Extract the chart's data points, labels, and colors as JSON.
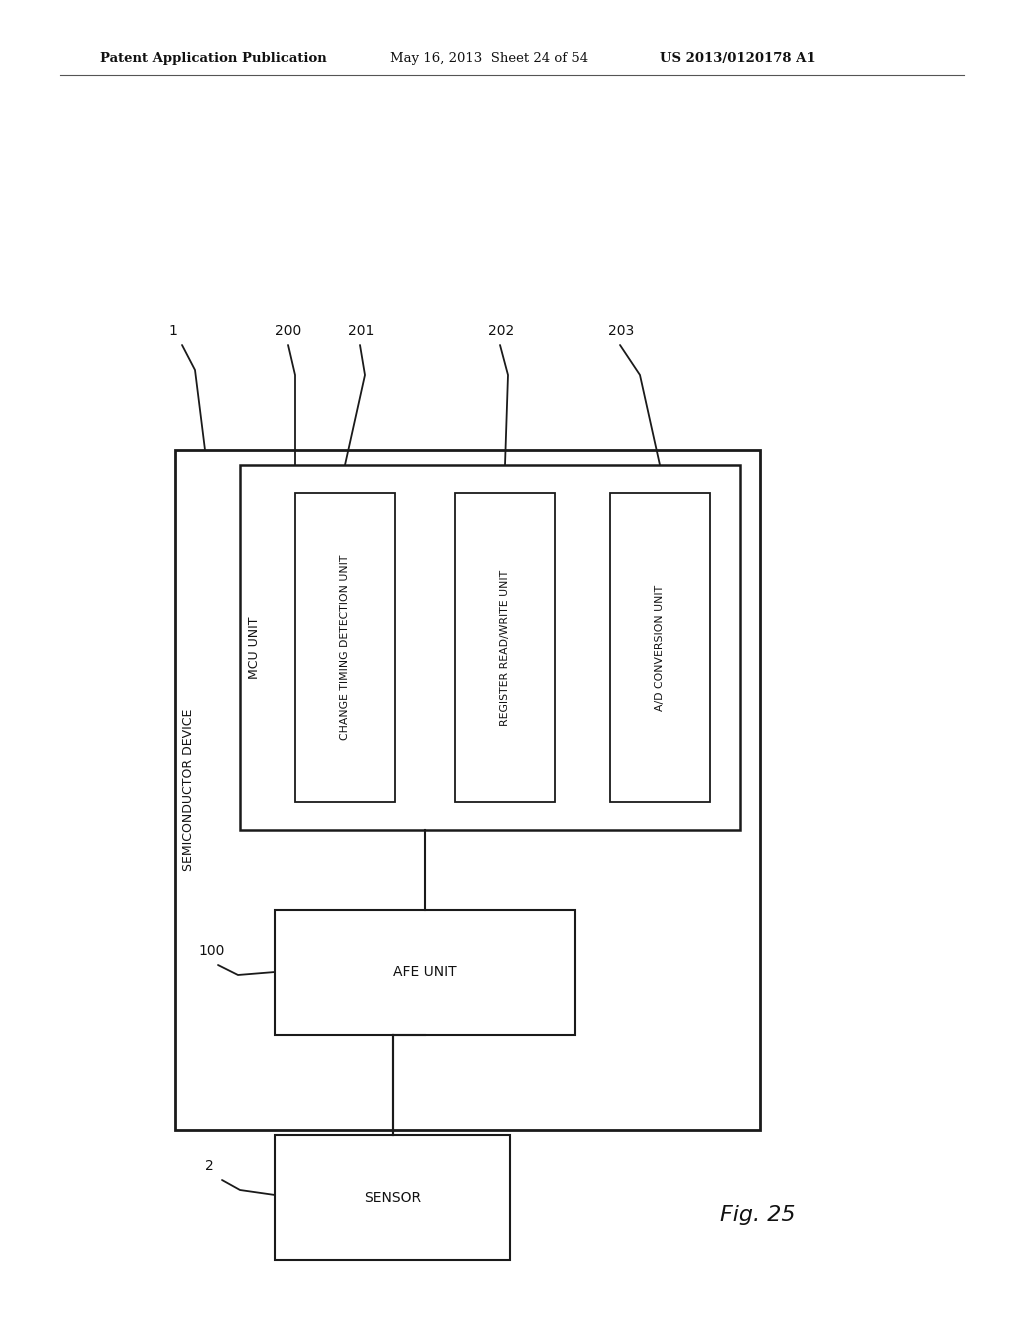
{
  "bg_color": "#ffffff",
  "header_left": "Patent Application Publication",
  "header_mid": "May 16, 2013  Sheet 24 of 54",
  "header_right": "US 2013/0120178 A1",
  "fig_label": "Fig. 25",
  "label_1": "1",
  "label_2": "2",
  "label_100": "100",
  "label_200": "200",
  "label_201": "201",
  "label_202": "202",
  "label_203": "203",
  "outer_box_label": "SEMICONDUCTOR DEVICE",
  "mcu_label": "MCU UNIT",
  "afe_label": "AFE UNIT",
  "sensor_label": "SENSOR",
  "block_labels": [
    "CHANGE TIMING DETECTION UNIT",
    "REGISTER READ/WRITE UNIT",
    "A/D CONVERSION UNIT"
  ]
}
